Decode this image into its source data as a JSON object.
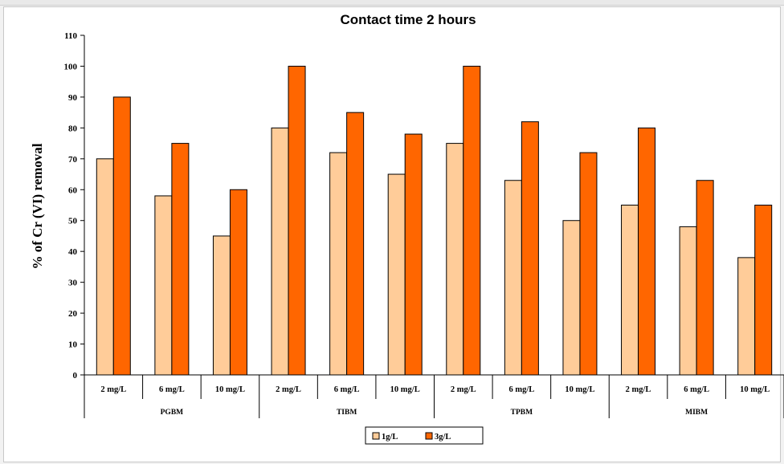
{
  "chart_data": {
    "type": "bar",
    "title": "Contact time 2 hours",
    "xlabel": "",
    "ylabel": "% of Cr (VI) removal",
    "ylim": [
      0,
      110
    ],
    "yticks": [
      0,
      10,
      20,
      30,
      40,
      50,
      60,
      70,
      80,
      90,
      100,
      110
    ],
    "groups": [
      "PGBM",
      "TIBM",
      "TPBM",
      "MIBM"
    ],
    "categories": [
      "2 mg/L",
      "6 mg/L",
      "10 mg/L",
      "2 mg/L",
      "6 mg/L",
      "10 mg/L",
      "2 mg/L",
      "6 mg/L",
      "10 mg/L",
      "2 mg/L",
      "6 mg/L",
      "10 mg/L"
    ],
    "series": [
      {
        "name": "1g/L",
        "color": "#ffcc99",
        "values": [
          70,
          58,
          45,
          80,
          72,
          65,
          75,
          63,
          50,
          55,
          48,
          38
        ]
      },
      {
        "name": "3g/L",
        "color": "#ff6600",
        "values": [
          90,
          75,
          60,
          100,
          85,
          78,
          100,
          82,
          72,
          80,
          63,
          55
        ]
      }
    ],
    "legend_position": "bottom",
    "grid": false
  }
}
